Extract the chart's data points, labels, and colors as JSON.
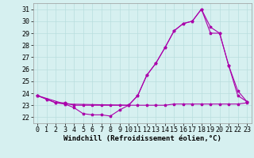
{
  "xlabel": "Windchill (Refroidissement éolien,°C)",
  "background_color": "#d6f0f0",
  "grid_color": "#b8dede",
  "line_color": "#aa00aa",
  "xlim": [
    -0.5,
    23.5
  ],
  "ylim": [
    21.5,
    31.5
  ],
  "xticks": [
    0,
    1,
    2,
    3,
    4,
    5,
    6,
    7,
    8,
    9,
    10,
    11,
    12,
    13,
    14,
    15,
    16,
    17,
    18,
    19,
    20,
    21,
    22,
    23
  ],
  "yticks": [
    22,
    23,
    24,
    25,
    26,
    27,
    28,
    29,
    30,
    31
  ],
  "line1_x": [
    0,
    1,
    2,
    3,
    4,
    5,
    6,
    7,
    8,
    9,
    10,
    11,
    12,
    13,
    14,
    15,
    16,
    17,
    18,
    19,
    20,
    21,
    22,
    23
  ],
  "line1_y": [
    23.8,
    23.5,
    23.2,
    23.1,
    22.8,
    22.3,
    22.2,
    22.2,
    22.1,
    22.6,
    23.0,
    23.8,
    25.5,
    26.5,
    27.8,
    29.2,
    29.8,
    30.0,
    31.0,
    29.0,
    29.0,
    26.3,
    23.8,
    23.3
  ],
  "line2_x": [
    0,
    1,
    2,
    3,
    4,
    5,
    6,
    7,
    8,
    9,
    10,
    11,
    12,
    13,
    14,
    15,
    16,
    17,
    18,
    19,
    20,
    21,
    22,
    23
  ],
  "line2_y": [
    23.8,
    23.5,
    23.2,
    23.2,
    23.0,
    23.0,
    23.0,
    23.0,
    23.0,
    23.0,
    23.0,
    23.0,
    23.0,
    23.0,
    23.0,
    23.1,
    23.1,
    23.1,
    23.1,
    23.1,
    23.1,
    23.1,
    23.1,
    23.2
  ],
  "line3_x": [
    0,
    3,
    10,
    11,
    12,
    13,
    14,
    15,
    16,
    17,
    18,
    19,
    20,
    21,
    22,
    23
  ],
  "line3_y": [
    23.8,
    23.1,
    23.0,
    23.8,
    25.5,
    26.5,
    27.8,
    29.2,
    29.8,
    30.0,
    31.0,
    29.5,
    29.0,
    26.3,
    24.2,
    23.3
  ],
  "xlabel_fontsize": 6.5,
  "tick_fontsize": 6
}
